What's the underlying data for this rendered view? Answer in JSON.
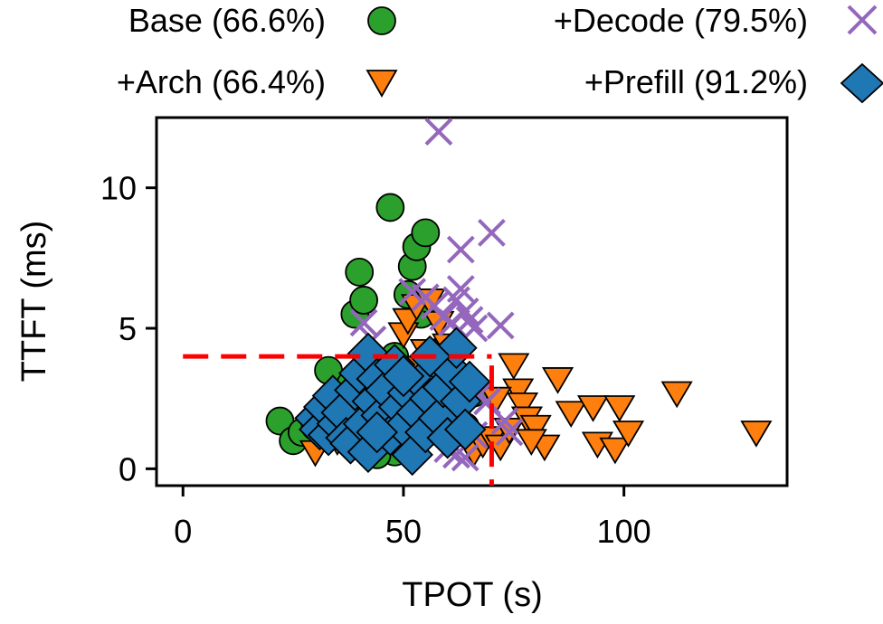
{
  "chart_data": {
    "type": "scatter",
    "xlabel": "TPOT (s)",
    "ylabel": "TTFT (ms)",
    "xlim": [
      -6,
      137
    ],
    "ylim": [
      -0.6,
      12.5
    ],
    "xticks": [
      0,
      50,
      100
    ],
    "yticks": [
      0,
      5,
      10
    ],
    "xtick_labels": [
      "0",
      "50",
      "100"
    ],
    "ytick_labels": [
      "0",
      "5",
      "10"
    ],
    "legend_position": "top, outside plot, 2 columns",
    "slo": {
      "tpot": 70,
      "ttft": 4
    },
    "colors": {
      "base": "#2ca02c",
      "arch": "#ff7f0e",
      "decode": "#9467bd",
      "prefill": "#1f77b4",
      "slo_line": "#ff0000"
    },
    "series": [
      {
        "key": "base",
        "name": "Base (66.6%)",
        "marker": "circle",
        "points": [
          [
            22,
            1.7
          ],
          [
            25,
            1.0
          ],
          [
            27,
            1.3
          ],
          [
            30,
            1.5
          ],
          [
            32,
            2.0
          ],
          [
            33,
            3.5
          ],
          [
            34,
            2.6
          ],
          [
            35,
            1.8
          ],
          [
            36,
            1.2
          ],
          [
            37,
            2.4
          ],
          [
            38,
            3.0
          ],
          [
            39,
            5.5
          ],
          [
            40,
            7.0
          ],
          [
            41,
            6.0
          ],
          [
            42,
            3.8
          ],
          [
            43,
            2.0
          ],
          [
            44,
            1.4
          ],
          [
            45,
            2.8
          ],
          [
            46,
            3.3
          ],
          [
            47,
            9.3
          ],
          [
            48,
            4.0
          ],
          [
            49,
            2.2
          ],
          [
            50,
            1.6
          ],
          [
            51,
            6.2
          ],
          [
            52,
            7.2
          ],
          [
            53,
            7.9
          ],
          [
            54,
            5.5
          ],
          [
            55,
            8.4
          ],
          [
            56,
            3.6
          ],
          [
            57,
            2.5
          ],
          [
            58,
            1.9
          ],
          [
            60,
            3.0
          ],
          [
            62,
            2.2
          ],
          [
            64,
            1.5
          ],
          [
            66,
            2.7
          ],
          [
            48,
            0.6
          ],
          [
            52,
            0.9
          ],
          [
            44,
            0.5
          ]
        ]
      },
      {
        "key": "arch",
        "name": "+Arch (66.4%)",
        "marker": "triangle-down",
        "points": [
          [
            30,
            0.6
          ],
          [
            35,
            1.0
          ],
          [
            38,
            0.8
          ],
          [
            42,
            1.4
          ],
          [
            45,
            3.2
          ],
          [
            47,
            2.6
          ],
          [
            50,
            4.8
          ],
          [
            51,
            5.3
          ],
          [
            53,
            5.8
          ],
          [
            54,
            3.6
          ],
          [
            55,
            4.2
          ],
          [
            56,
            6.0
          ],
          [
            57,
            2.9
          ],
          [
            58,
            5.2
          ],
          [
            60,
            4.4
          ],
          [
            62,
            3.0
          ],
          [
            64,
            2.2
          ],
          [
            66,
            0.6
          ],
          [
            68,
            0.9
          ],
          [
            70,
            1.1
          ],
          [
            72,
            0.8
          ],
          [
            74,
            1.4
          ],
          [
            75,
            3.7
          ],
          [
            76,
            2.8
          ],
          [
            77,
            2.3
          ],
          [
            78,
            1.8
          ],
          [
            80,
            1.5
          ],
          [
            82,
            0.8
          ],
          [
            85,
            3.2
          ],
          [
            88,
            2.0
          ],
          [
            93,
            2.2
          ],
          [
            94,
            0.9
          ],
          [
            98,
            0.7
          ],
          [
            99,
            2.2
          ],
          [
            101,
            1.3
          ],
          [
            112,
            2.7
          ],
          [
            130,
            1.3
          ],
          [
            71,
            2.5
          ],
          [
            79,
            1.0
          ]
        ]
      },
      {
        "key": "decode",
        "name": "+Decode (79.5%)",
        "marker": "x",
        "points": [
          [
            58,
            12.0
          ],
          [
            63,
            7.8
          ],
          [
            70,
            8.4
          ],
          [
            72,
            5.1
          ],
          [
            52,
            6.3
          ],
          [
            55,
            6.1
          ],
          [
            57,
            5.8
          ],
          [
            59,
            5.4
          ],
          [
            61,
            5.2
          ],
          [
            62,
            6.0
          ],
          [
            63,
            6.4
          ],
          [
            64,
            5.6
          ],
          [
            65,
            5.3
          ],
          [
            66,
            5.0
          ],
          [
            41,
            5.2
          ],
          [
            43,
            4.6
          ],
          [
            67,
            2.6
          ],
          [
            69,
            2.4
          ],
          [
            73,
            1.7
          ],
          [
            74,
            1.3
          ],
          [
            60,
            0.7
          ],
          [
            62,
            0.5
          ],
          [
            64,
            0.4
          ],
          [
            66,
            1.2
          ]
        ]
      },
      {
        "key": "prefill",
        "name": "+Prefill (91.2%)",
        "marker": "diamond",
        "points": [
          [
            30,
            1.8
          ],
          [
            31,
            1.4
          ],
          [
            32,
            2.2
          ],
          [
            33,
            1.2
          ],
          [
            34,
            2.6
          ],
          [
            35,
            1.6
          ],
          [
            36,
            2.0
          ],
          [
            37,
            1.1
          ],
          [
            38,
            0.9
          ],
          [
            39,
            2.8
          ],
          [
            40,
            3.4
          ],
          [
            41,
            1.6
          ],
          [
            42,
            4.1
          ],
          [
            42,
            0.6
          ],
          [
            43,
            2.4
          ],
          [
            44,
            3.2
          ],
          [
            45,
            1.9
          ],
          [
            46,
            2.8
          ],
          [
            47,
            1.2
          ],
          [
            48,
            3.7
          ],
          [
            49,
            2.2
          ],
          [
            50,
            1.5
          ],
          [
            51,
            2.7
          ],
          [
            52,
            0.5
          ],
          [
            53,
            2.0
          ],
          [
            54,
            3.1
          ],
          [
            55,
            1.3
          ],
          [
            56,
            2.5
          ],
          [
            57,
            3.9
          ],
          [
            58,
            1.8
          ],
          [
            59,
            2.9
          ],
          [
            60,
            1.1
          ],
          [
            61,
            3.5
          ],
          [
            62,
            4.3
          ],
          [
            63,
            2.4
          ],
          [
            64,
            1.4
          ],
          [
            65,
            3.1
          ],
          [
            44,
            1.3
          ],
          [
            50,
            3.3
          ],
          [
            56,
            4.0
          ]
        ]
      }
    ]
  }
}
